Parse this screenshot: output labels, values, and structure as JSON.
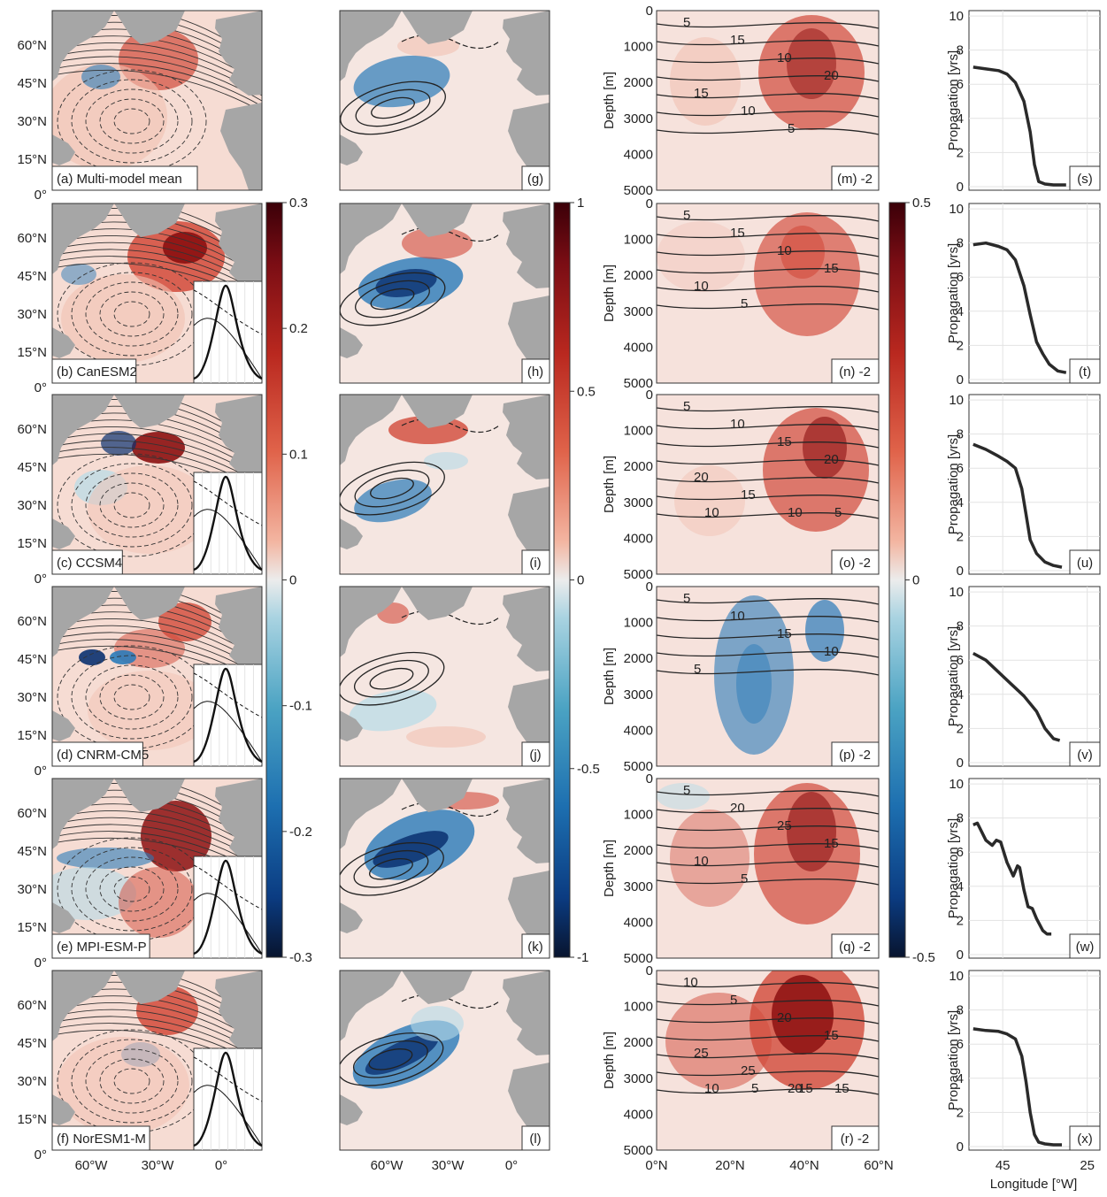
{
  "chart_data": {
    "type": "figure-panels",
    "rows": [
      {
        "map_label": "(a) Multi-model mean",
        "reg_label": "(g)",
        "sec_label": "(m) -2",
        "prop_label": "(s)",
        "sec_contours": [
          "5",
          "15",
          "10",
          "20",
          "15",
          "10",
          "5"
        ],
        "propagation": {
          "x": [
            52,
            49,
            46,
            44,
            42,
            40,
            38.5,
            37.5,
            36.5,
            35,
            33,
            30
          ],
          "y": [
            7.0,
            6.9,
            6.8,
            6.6,
            6.1,
            5.0,
            3.2,
            1.3,
            0.3,
            0.15,
            0.1,
            0.1
          ]
        }
      },
      {
        "map_label": "(b) CanESM2",
        "reg_label": "(h)",
        "sec_label": "(n) -2",
        "prop_label": "(t)",
        "sec_contours": [
          "5",
          "15",
          "10",
          "15",
          "10",
          "5"
        ],
        "propagation": {
          "x": [
            52,
            49,
            46,
            44,
            42,
            40,
            38.5,
            37,
            35.5,
            34,
            32,
            30
          ],
          "y": [
            7.9,
            8.0,
            7.8,
            7.6,
            7.0,
            5.5,
            3.8,
            2.2,
            1.5,
            0.9,
            0.5,
            0.4
          ]
        }
      },
      {
        "map_label": "(c) CCSM4",
        "reg_label": "(i)",
        "sec_label": "(o) -2",
        "prop_label": "(u)",
        "sec_contours": [
          "5",
          "10",
          "15",
          "20",
          "20",
          "15",
          "10",
          "5",
          "10"
        ],
        "propagation": {
          "x": [
            52,
            49,
            46,
            44,
            42,
            40.5,
            39.5,
            38.5,
            37,
            35,
            33,
            31
          ],
          "y": [
            7.4,
            7.1,
            6.7,
            6.4,
            6.0,
            4.8,
            3.3,
            1.8,
            1.0,
            0.5,
            0.3,
            0.2
          ]
        }
      },
      {
        "map_label": "(d) CNRM-CM5",
        "reg_label": "(j)",
        "sec_label": "(p) -2",
        "prop_label": "(v)",
        "sec_contours": [
          "5",
          "10",
          "15",
          "10",
          "5"
        ],
        "propagation": {
          "x": [
            52,
            49,
            46,
            43,
            40,
            37,
            35,
            33,
            31.5
          ],
          "y": [
            6.4,
            6.0,
            5.3,
            4.6,
            3.9,
            3.0,
            2.0,
            1.4,
            1.3
          ]
        }
      },
      {
        "map_label": "(e) MPI-ESM-P",
        "reg_label": "(k)",
        "sec_label": "(q) -2",
        "prop_label": "(w)",
        "sec_contours": [
          "5",
          "20",
          "25",
          "15",
          "10",
          "5"
        ],
        "propagation": {
          "x": [
            52,
            51,
            49,
            47.5,
            46.5,
            45.5,
            44,
            42.5,
            41.5,
            41,
            40,
            39,
            38,
            37,
            35.5,
            34.5,
            33.5
          ],
          "y": [
            7.6,
            7.7,
            6.7,
            6.4,
            6.7,
            6.6,
            5.4,
            4.6,
            5.2,
            5.1,
            3.8,
            2.8,
            2.7,
            2.1,
            1.4,
            1.2,
            1.2
          ]
        }
      },
      {
        "map_label": "(f) NorESM1-M",
        "reg_label": "(l)",
        "sec_label": "(r) -2",
        "prop_label": "(x)",
        "sec_contours": [
          "10",
          "5",
          "20",
          "15",
          "25",
          "25",
          "20",
          "15",
          "10",
          "5",
          "15"
        ],
        "propagation": {
          "x": [
            52,
            49,
            46,
            44,
            42,
            40.5,
            39.5,
            38.5,
            37.5,
            36.5,
            35,
            33,
            31
          ],
          "y": [
            6.9,
            6.8,
            6.75,
            6.6,
            6.3,
            5.3,
            3.8,
            2.0,
            0.7,
            0.25,
            0.15,
            0.1,
            0.1
          ]
        }
      }
    ],
    "map_axis": {
      "lat_ticks": [
        "0°",
        "15°N",
        "30°N",
        "45°N",
        "60°N"
      ],
      "lon_ticks": [
        "60°W",
        "30°W",
        "0°"
      ]
    },
    "colorbar1": {
      "ticks": [
        "0.3",
        "0.2",
        "0.1",
        "0",
        "-0.1",
        "-0.2",
        "-0.3"
      ]
    },
    "colorbar2": {
      "ticks": [
        "1",
        "0.5",
        "0",
        "-0.5",
        "-1"
      ]
    },
    "colorbar3": {
      "ticks": [
        "0.5",
        "0",
        "-0.5"
      ]
    },
    "section_axis": {
      "ylabel": "Depth [m]",
      "ylim": [
        0,
        5000
      ],
      "y_ticks": [
        "0",
        "1000",
        "2000",
        "3000",
        "4000",
        "5000"
      ],
      "x_ticks": [
        "0°N",
        "20°N",
        "40°N",
        "60°N"
      ]
    },
    "propagation_axis": {
      "ylabel": "Propagation [yrs]",
      "xlabel": "Longitude [°W]",
      "ylim": [
        0,
        10
      ],
      "xlim": [
        53,
        22
      ],
      "y_ticks": [
        "0",
        "2",
        "4",
        "6",
        "8",
        "10"
      ],
      "x_ticks": [
        "45",
        "25"
      ]
    },
    "colors": {
      "land": "#a6a6a6",
      "positive": "#c0392b",
      "negative": "#2166ac",
      "contour": "#262626"
    }
  }
}
